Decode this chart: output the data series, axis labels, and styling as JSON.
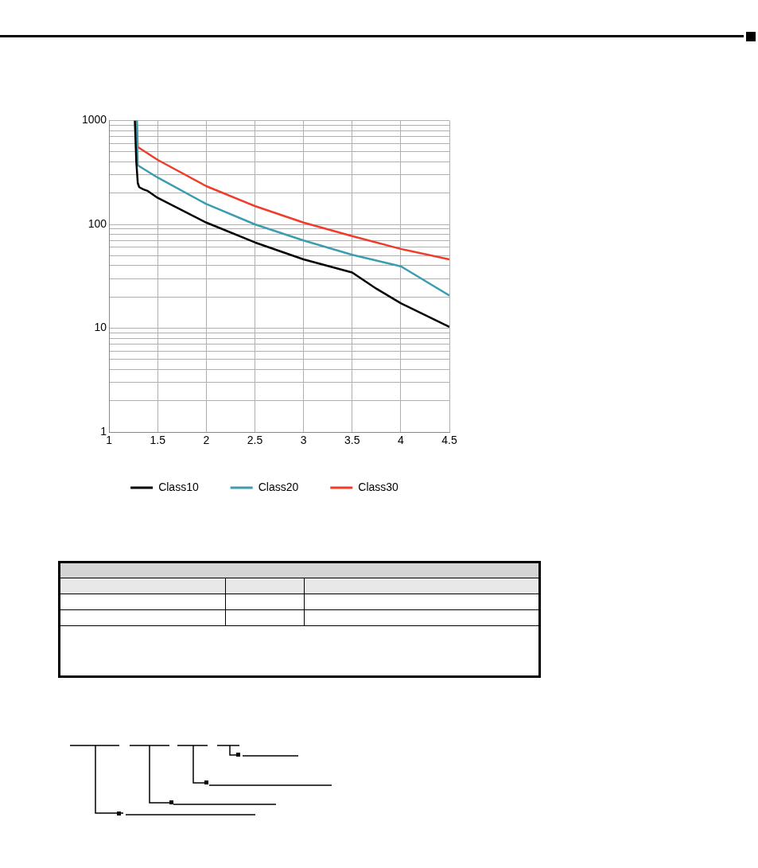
{
  "chart_data": {
    "type": "line",
    "series": [
      {
        "name": "Class10",
        "color": "#000000",
        "x": [
          1.265,
          1.28,
          1.295,
          1.31,
          1.35,
          1.4,
          1.5,
          2,
          2.5,
          3,
          3.5,
          3.75,
          4,
          4.5
        ],
        "values": [
          1000,
          400,
          250,
          228,
          218,
          209,
          180,
          104,
          67,
          46,
          34.4,
          24,
          17.4,
          10.3
        ]
      },
      {
        "name": "Class20",
        "color": "#3a9db0",
        "x": [
          1.285,
          1.295,
          1.5,
          2,
          2.5,
          3,
          3.5,
          4,
          4.5
        ],
        "values": [
          1000,
          370,
          282,
          157,
          100,
          70,
          51,
          39.5,
          20.7
        ]
      },
      {
        "name": "Class30",
        "color": "#f03c2a",
        "x": [
          1.285,
          1.295,
          1.5,
          2,
          2.5,
          3,
          3.5,
          4,
          4.5
        ],
        "values": [
          1000,
          555,
          417,
          233,
          150,
          104,
          77,
          58,
          46
        ]
      }
    ],
    "xlim": [
      1,
      4.5
    ],
    "xticks": [
      1,
      1.5,
      2,
      2.5,
      3,
      3.5,
      4,
      4.5
    ],
    "ylim": [
      1,
      1000
    ],
    "yticks": [
      1,
      {
        "value": 2,
        "label": null
      },
      {
        "value": 3,
        "label": null
      },
      {
        "value": 4,
        "label": null
      },
      {
        "value": 5,
        "label": null
      },
      {
        "value": 6,
        "label": null
      },
      {
        "value": 7,
        "label": null
      },
      {
        "value": 8,
        "label": null
      },
      {
        "value": 9,
        "label": null
      },
      10,
      {
        "value": 20,
        "label": null
      },
      {
        "value": 30,
        "label": null
      },
      {
        "value": 40,
        "label": null
      },
      {
        "value": 50,
        "label": null
      },
      {
        "value": 60,
        "label": null
      },
      {
        "value": 70,
        "label": null
      },
      {
        "value": 80,
        "label": null
      },
      {
        "value": 90,
        "label": null
      },
      100,
      {
        "value": 200,
        "label": null
      },
      {
        "value": 300,
        "label": null
      },
      {
        "value": 400,
        "label": null
      },
      {
        "value": 500,
        "label": null
      },
      {
        "value": 600,
        "label": null
      },
      {
        "value": 700,
        "label": null
      },
      {
        "value": 800,
        "label": null
      },
      {
        "value": 900,
        "label": null
      },
      1000
    ],
    "log": "y",
    "grid": true,
    "legend": "bottom",
    "marker": "none",
    "line_style": "solid"
  }
}
